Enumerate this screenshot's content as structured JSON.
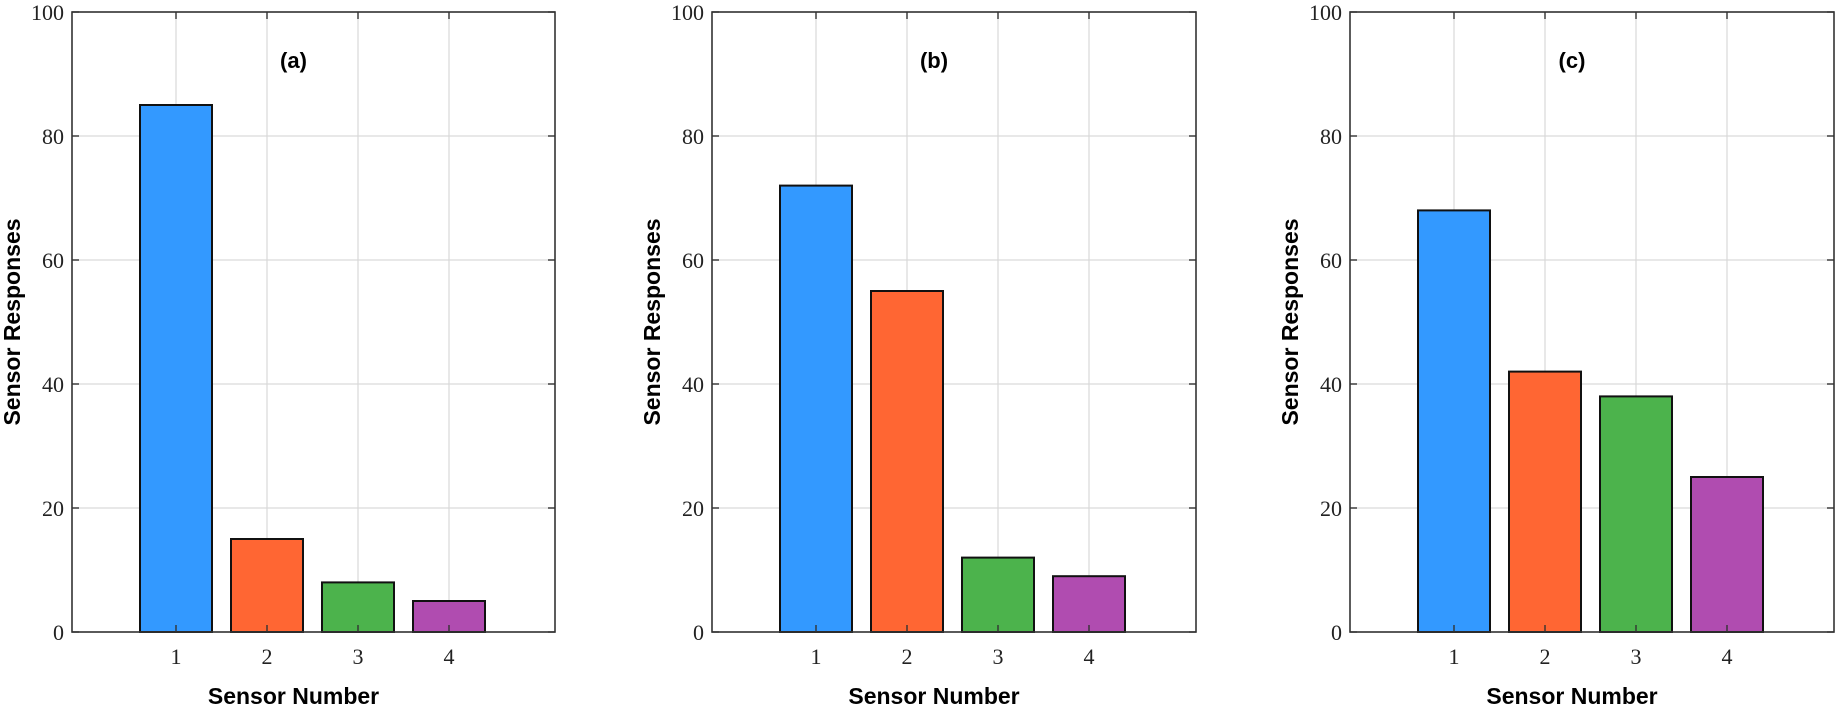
{
  "chart_data": [
    {
      "type": "bar",
      "panel_label": "(a)",
      "categories": [
        "1",
        "2",
        "3",
        "4"
      ],
      "values": [
        85,
        15,
        8,
        5
      ],
      "xlabel": "Sensor Number",
      "ylabel": "Sensor Responses",
      "ylim": [
        0,
        100
      ],
      "yticks": [
        "0",
        "20",
        "40",
        "60",
        "80",
        "100"
      ],
      "grid": true,
      "colors": [
        "#3399ff",
        "#ff6633",
        "#4cb34c",
        "#b04cb0"
      ]
    },
    {
      "type": "bar",
      "panel_label": "(b)",
      "categories": [
        "1",
        "2",
        "3",
        "4"
      ],
      "values": [
        72,
        55,
        12,
        9
      ],
      "xlabel": "Sensor Number",
      "ylabel": "Sensor Responses",
      "ylim": [
        0,
        100
      ],
      "yticks": [
        "0",
        "20",
        "40",
        "60",
        "80",
        "100"
      ],
      "grid": true,
      "colors": [
        "#3399ff",
        "#ff6633",
        "#4cb34c",
        "#b04cb0"
      ]
    },
    {
      "type": "bar",
      "panel_label": "(c)",
      "categories": [
        "1",
        "2",
        "3",
        "4"
      ],
      "values": [
        68,
        42,
        38,
        25
      ],
      "xlabel": "Sensor Number",
      "ylabel": "Sensor Responses",
      "ylim": [
        0,
        100
      ],
      "yticks": [
        "0",
        "20",
        "40",
        "60",
        "80",
        "100"
      ],
      "grid": true,
      "colors": [
        "#3399ff",
        "#ff6633",
        "#4cb34c",
        "#b04cb0"
      ]
    }
  ]
}
